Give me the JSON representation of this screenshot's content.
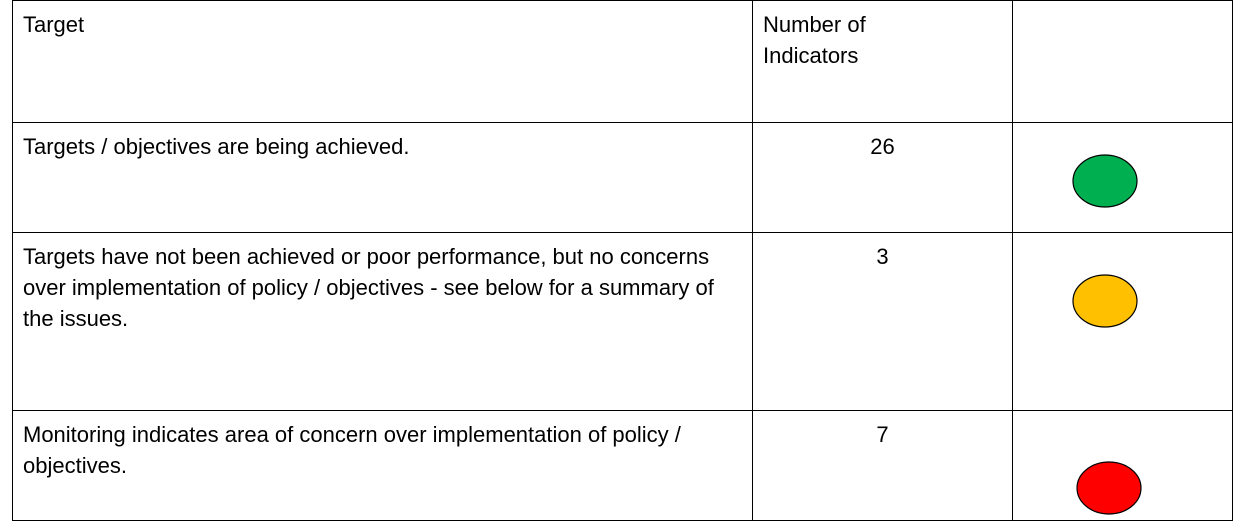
{
  "table": {
    "header": [
      "Target",
      "Number of Indicators",
      ""
    ],
    "rows": [
      {
        "target": "Targets / objectives are being achieved.",
        "count": 26,
        "color": "#00b050"
      },
      {
        "target": "Targets have not been achieved or poor performance, but no concerns over implementation of policy / objectives - see below for a summary of the issues.",
        "count": 3,
        "color": "#ffc000"
      },
      {
        "target": "Monitoring indicates area of concern over implementation of policy / objectives.",
        "count": 7,
        "color": "#ff0000"
      }
    ]
  }
}
